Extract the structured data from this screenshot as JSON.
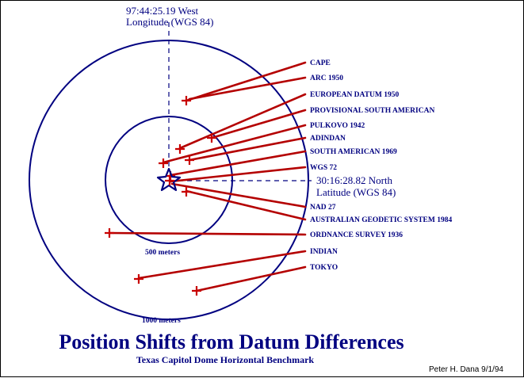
{
  "colors": {
    "navy": "#000080",
    "marker": "#c80000",
    "line": "#b40000",
    "credit": "#000000"
  },
  "reference": {
    "longitude_value": "97:44:25.19 West",
    "longitude_label": "Longitude (WGS 84)",
    "latitude_value": "30:16:28.82 North",
    "latitude_label": "Latitude (WGS 84)"
  },
  "rings": {
    "inner_label": "500 meters",
    "outer_label": "1000 meters"
  },
  "datums": [
    "CAPE",
    "ARC 1950",
    "EUROPEAN DATUM 1950",
    "PROVISIONAL SOUTH AMERICAN",
    "PULKOVO 1942",
    "ADINDAN",
    "SOUTH AMERICAN 1969",
    "WGS 72",
    "NAD 27",
    "AUSTRALIAN GEODETIC SYSTEM 1984",
    "ORDNANCE SURVEY 1936",
    "INDIAN",
    "TOKYO"
  ],
  "title": "Position Shifts from Datum Differences",
  "subtitle": "Texas Capitol Dome Horizontal Benchmark",
  "credit": "Peter H. Dana 9/1/94"
}
